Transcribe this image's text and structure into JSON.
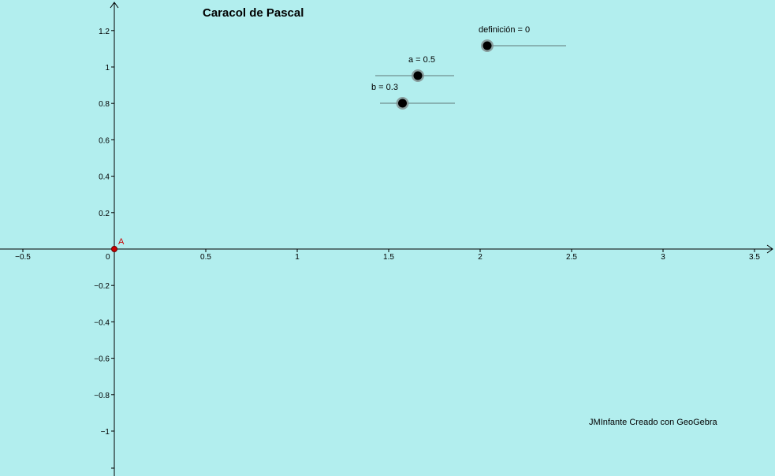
{
  "title": "Caracol de Pascal",
  "credit": "JMInfante Creado con GeoGebra",
  "colors": {
    "background": "#b2eeee",
    "axis": "#000000",
    "slider_line": "#607878",
    "slider_knob": "#000000",
    "point_A": "#cc0000"
  },
  "axes": {
    "x_ticks": [
      "−0.5",
      "0",
      "0.5",
      "1",
      "1.5",
      "2",
      "2.5",
      "3",
      "3.5"
    ],
    "y_ticks_positive": [
      "0.2",
      "0.4",
      "0.6",
      "0.8",
      "1",
      "1.2"
    ],
    "y_ticks_negative": [
      "−0.2",
      "−0.4",
      "−0.6",
      "−0.8",
      "−1"
    ]
  },
  "point_A": {
    "label": "A",
    "x": 0,
    "y": 0
  },
  "sliders": [
    {
      "id": "definicion",
      "label": "definición = 0",
      "value": 0,
      "min": 0,
      "max": 1
    },
    {
      "id": "a",
      "label": "a = 0.5",
      "value": 0.5,
      "min": 0,
      "max": 1
    },
    {
      "id": "b",
      "label": "b = 0.3",
      "value": 0.3,
      "min": 0,
      "max": 1
    }
  ]
}
